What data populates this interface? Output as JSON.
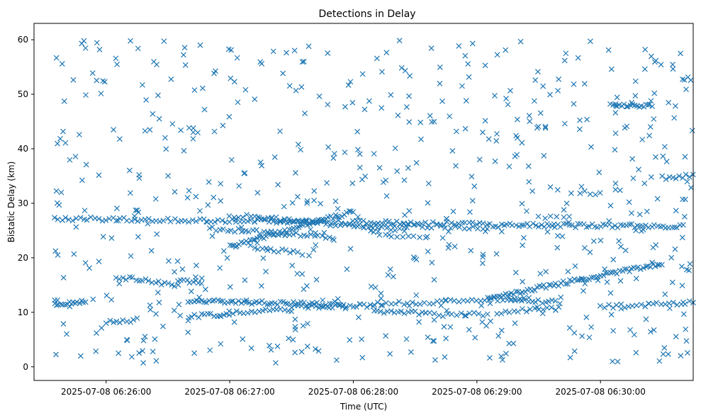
{
  "chart_data": {
    "type": "scatter",
    "title": "Detections in Delay",
    "xlabel": "Time (UTC)",
    "ylabel": "Bistatic Delay (km)",
    "x_is_time": true,
    "xlim": [
      "2025-07-08 06:25:25",
      "2025-07-08 06:30:45"
    ],
    "ylim": [
      -2.5,
      63
    ],
    "x_ticks": [
      "2025-07-08 06:26:00",
      "2025-07-08 06:27:00",
      "2025-07-08 06:28:00",
      "2025-07-08 06:29:00",
      "2025-07-08 06:30:00"
    ],
    "y_ticks": [
      0,
      10,
      20,
      30,
      40,
      50,
      60
    ],
    "grid": false,
    "legend": "none",
    "marker": "x",
    "color": "#1f77b4",
    "series": [
      {
        "tracks": [
          {
            "start": "2025-07-08 06:25:35",
            "end": "2025-07-08 06:29:05",
            "y_start": 27.2,
            "y_end": 26.2,
            "count": 120
          },
          {
            "start": "2025-07-08 06:26:50",
            "end": "2025-07-08 06:27:50",
            "y_start": 25.4,
            "y_end": 23.8,
            "count": 35
          },
          {
            "start": "2025-07-08 06:27:00",
            "end": "2025-07-08 06:28:00",
            "y_start": 22.0,
            "y_end": 28.5,
            "count": 55
          },
          {
            "start": "2025-07-08 06:27:00",
            "end": "2025-07-08 06:27:35",
            "y_start": 27.8,
            "y_end": 26.8,
            "count": 18
          },
          {
            "start": "2025-07-08 06:27:10",
            "end": "2025-07-08 06:27:35",
            "y_start": 22.0,
            "y_end": 20.8,
            "count": 14
          },
          {
            "start": "2025-07-08 06:27:20",
            "end": "2025-07-08 06:28:25",
            "y_start": 27.2,
            "y_end": 25.0,
            "count": 30
          },
          {
            "start": "2025-07-08 06:28:00",
            "end": "2025-07-08 06:29:05",
            "y_start": 26.0,
            "y_end": 25.6,
            "count": 30
          },
          {
            "start": "2025-07-08 06:28:10",
            "end": "2025-07-08 06:28:35",
            "y_start": 24.5,
            "y_end": 23.5,
            "count": 10
          },
          {
            "start": "2025-07-08 06:29:05",
            "end": "2025-07-08 06:30:40",
            "y_start": 26.0,
            "y_end": 25.8,
            "count": 70
          },
          {
            "start": "2025-07-08 06:30:05",
            "end": "2025-07-08 06:30:25",
            "y_start": 48.2,
            "y_end": 47.8,
            "count": 20
          },
          {
            "start": "2025-07-08 06:30:30",
            "end": "2025-07-08 06:30:45",
            "y_start": 34.7,
            "y_end": 35.0,
            "count": 10
          },
          {
            "start": "2025-07-08 06:29:30",
            "end": "2025-07-08 06:29:45",
            "y_start": 27.4,
            "y_end": 27.4,
            "count": 6
          },
          {
            "start": "2025-07-08 06:29:50",
            "end": "2025-07-08 06:30:00",
            "y_start": 31.9,
            "y_end": 31.9,
            "count": 5
          },
          {
            "start": "2025-07-08 06:25:35",
            "end": "2025-07-08 06:25:50",
            "y_start": 11.5,
            "y_end": 11.9,
            "count": 16
          },
          {
            "start": "2025-07-08 06:26:00",
            "end": "2025-07-08 06:26:15",
            "y_start": 8.2,
            "y_end": 8.6,
            "count": 10
          },
          {
            "start": "2025-07-08 06:26:05",
            "end": "2025-07-08 06:26:35",
            "y_start": 16.5,
            "y_end": 15.0,
            "count": 20
          },
          {
            "start": "2025-07-08 06:26:35",
            "end": "2025-07-08 06:26:45",
            "y_start": 15.7,
            "y_end": 15.5,
            "count": 8
          },
          {
            "start": "2025-07-08 06:26:40",
            "end": "2025-07-08 06:27:00",
            "y_start": 9.3,
            "y_end": 9.6,
            "count": 14
          },
          {
            "start": "2025-07-08 06:26:40",
            "end": "2025-07-08 06:27:55",
            "y_start": 12.2,
            "y_end": 11.3,
            "count": 60
          },
          {
            "start": "2025-07-08 06:27:00",
            "end": "2025-07-08 06:27:30",
            "y_start": 10.0,
            "y_end": 10.5,
            "count": 18
          },
          {
            "start": "2025-07-08 06:27:30",
            "end": "2025-07-08 06:28:10",
            "y_start": 11.0,
            "y_end": 11.3,
            "count": 25
          },
          {
            "start": "2025-07-08 06:28:10",
            "end": "2025-07-08 06:28:35",
            "y_start": 10.2,
            "y_end": 9.8,
            "count": 16
          },
          {
            "start": "2025-07-08 06:28:10",
            "end": "2025-07-08 06:28:45",
            "y_start": 11.5,
            "y_end": 12.0,
            "count": 18
          },
          {
            "start": "2025-07-08 06:28:35",
            "end": "2025-07-08 06:29:05",
            "y_start": 9.6,
            "y_end": 9.6,
            "count": 15
          },
          {
            "start": "2025-07-08 06:28:45",
            "end": "2025-07-08 06:29:25",
            "y_start": 12.2,
            "y_end": 12.5,
            "count": 20
          },
          {
            "start": "2025-07-08 06:29:05",
            "end": "2025-07-08 06:30:30",
            "y_start": 12.6,
            "y_end": 19.0,
            "count": 75
          },
          {
            "start": "2025-07-08 06:29:10",
            "end": "2025-07-08 06:29:40",
            "y_start": 10.0,
            "y_end": 10.8,
            "count": 16
          },
          {
            "start": "2025-07-08 06:29:15",
            "end": "2025-07-08 06:29:40",
            "y_start": 12.5,
            "y_end": 11.8,
            "count": 16
          },
          {
            "start": "2025-07-08 06:30:00",
            "end": "2025-07-08 06:30:45",
            "y_start": 11.0,
            "y_end": 11.8,
            "count": 24
          }
        ],
        "scatter_seed": 20250708,
        "scatter_count": 620,
        "scatter_range": {
          "start": "2025-07-08 06:25:35",
          "end": "2025-07-08 06:30:45",
          "y_min": 0.5,
          "y_max": 60
        }
      }
    ]
  }
}
